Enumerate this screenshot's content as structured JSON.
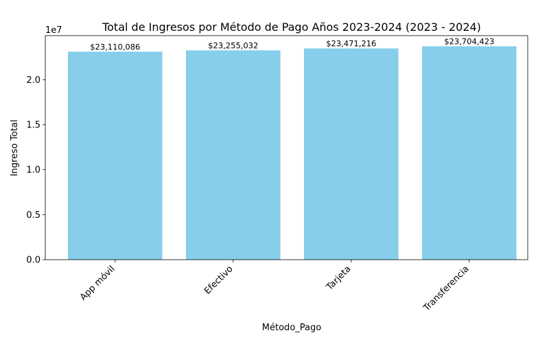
{
  "chart_data": {
    "type": "bar",
    "title": "Total de Ingresos por Método de Pago Años 2023-2024 (2023 - 2024)",
    "xlabel": "Método_Pago",
    "ylabel": "Ingreso Total",
    "offset_label": "1e7",
    "categories": [
      "App móvil",
      "Efectivo",
      "Tarjeta",
      "Transferencia"
    ],
    "values": [
      23110086,
      23255032,
      23471216,
      23704423
    ],
    "value_labels": [
      "$23,110,086",
      "$23,255,032",
      "$23,471,216",
      "$23,704,423"
    ],
    "ylim": [
      0,
      24891000
    ],
    "yticks": [
      0,
      5000000,
      10000000,
      15000000,
      20000000
    ],
    "ytick_labels": [
      "0.0",
      "0.5",
      "1.0",
      "1.5",
      "2.0"
    ],
    "bar_color": "#87CEEB",
    "grid": false,
    "legend": "none"
  }
}
